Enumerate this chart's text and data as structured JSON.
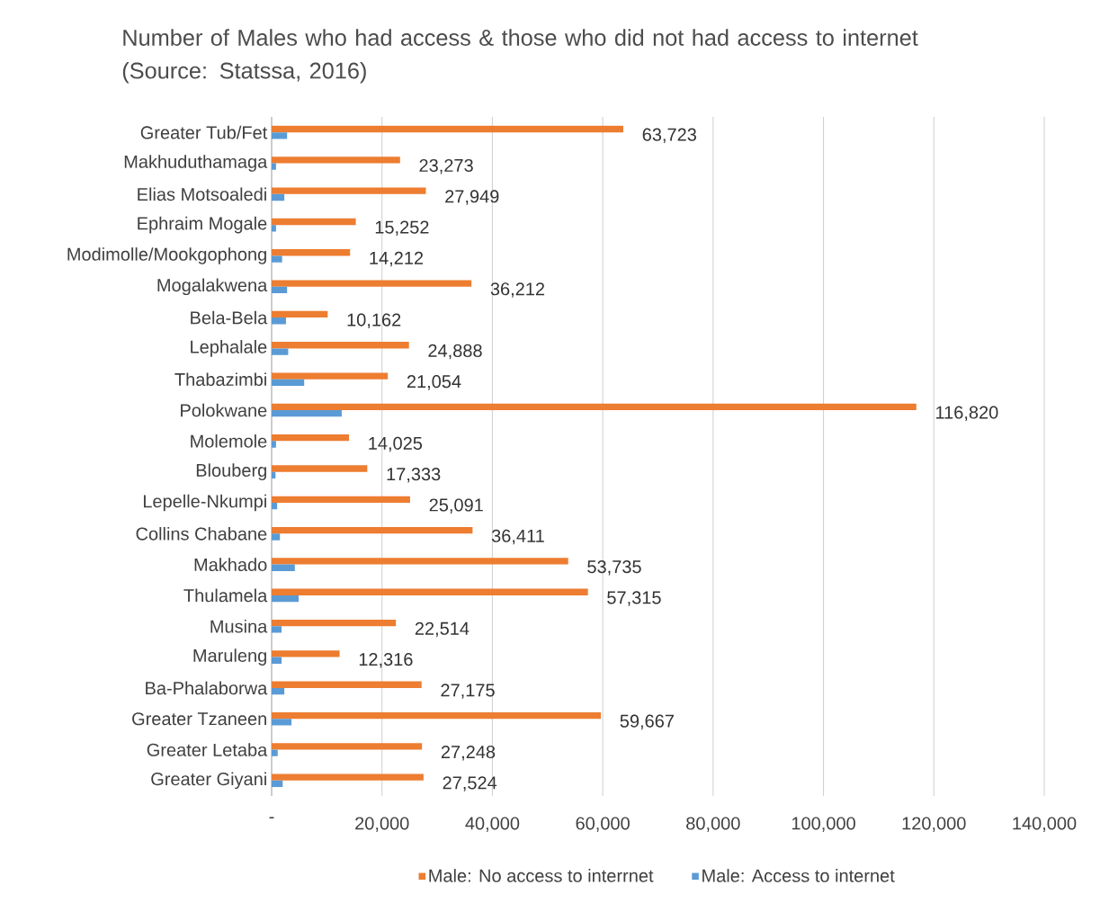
{
  "chart_data": {
    "type": "bar",
    "orientation": "horizontal",
    "title": "Number of Males who had access & those who did not had access to internet (Source: Statssa, 2016)",
    "categories": [
      "Greater Tub/Fet",
      "Makhuduthamaga",
      "Elias Motsoaledi",
      "Ephraim Mogale",
      "Modimolle/Mookgophong",
      "Mogalakwena",
      "Bela-Bela",
      "Lephalale",
      "Thabazimbi",
      "Polokwane",
      "Molemole",
      "Blouberg",
      "Lepelle-Nkumpi",
      "Collins Chabane",
      "Makhado",
      "Thulamela",
      "Musina",
      "Maruleng",
      "Ba-Phalaborwa",
      "Greater Tzaneen",
      "Greater Letaba",
      "Greater Giyani"
    ],
    "series": [
      {
        "name": "Male: No access to interrnet",
        "color": "#ed7d31",
        "values": [
          63723,
          23273,
          27949,
          15252,
          14212,
          36212,
          10162,
          24888,
          21054,
          116820,
          14025,
          17333,
          25091,
          36411,
          53735,
          57315,
          22514,
          12316,
          27175,
          59667,
          27248,
          27524
        ],
        "value_labels": [
          "63,723",
          "23,273",
          "27,949",
          "15,252",
          "14,212",
          "36,212",
          "10,162",
          "24,888",
          "21,054",
          "116,820",
          "14,025",
          "17,333",
          "25,091",
          "36,411",
          "53,735",
          "57,315",
          "22,514",
          "12,316",
          "27,175",
          "59,667",
          "27,248",
          "27,524"
        ]
      },
      {
        "name": "Male: Access to internet",
        "color": "#5b9bd5",
        "values": [
          2800,
          800,
          2300,
          800,
          1900,
          2800,
          2600,
          3000,
          5900,
          12700,
          800,
          700,
          1000,
          1500,
          4200,
          4900,
          1800,
          1800,
          2300,
          3600,
          1100,
          2000
        ]
      }
    ],
    "xlim": [
      0,
      140000
    ],
    "xticks": [
      {
        "value": 0,
        "label": "-"
      },
      {
        "value": 20000,
        "label": "20,000"
      },
      {
        "value": 40000,
        "label": "40,000"
      },
      {
        "value": 60000,
        "label": "60,000"
      },
      {
        "value": 80000,
        "label": "80,000"
      },
      {
        "value": 100000,
        "label": "100,000"
      },
      {
        "value": 120000,
        "label": "120,000"
      },
      {
        "value": 140000,
        "label": "140,000"
      }
    ],
    "grid": "x",
    "legend": "bottom"
  }
}
